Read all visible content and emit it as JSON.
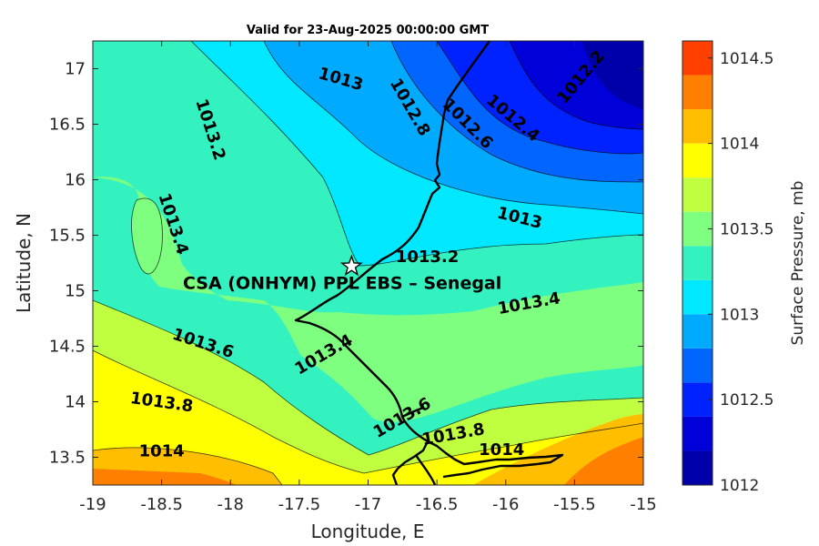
{
  "chart_data": {
    "type": "contour",
    "title": "Valid for 23-Aug-2025 00:00:00 GMT",
    "xlabel": "Longitude, E",
    "ylabel": "Latitude, N",
    "xlim": [
      -19,
      -15
    ],
    "ylim": [
      13.25,
      17.25
    ],
    "xticks": [
      -19,
      -18.5,
      -18,
      -17.5,
      -17,
      -16.5,
      -16,
      -15.5,
      -15
    ],
    "xtick_labels": [
      "-19",
      "-18.5",
      "-18",
      "-17.5",
      "-17",
      "-16.5",
      "-16",
      "-15.5",
      "-15"
    ],
    "yticks": [
      13.5,
      14,
      14.5,
      15,
      15.5,
      16,
      16.5,
      17
    ],
    "ytick_labels": [
      "13.5",
      "14",
      "14.5",
      "15",
      "15.5",
      "16",
      "16.5",
      "17"
    ],
    "colorbar": {
      "label": "Surface Pressure, mb",
      "range": [
        1012,
        1014.6
      ],
      "ticks": [
        1012,
        1012.5,
        1013,
        1013.5,
        1014,
        1014.5
      ],
      "tick_labels": [
        "1012",
        "1012.5",
        "1013",
        "1013.5",
        "1014",
        "1014.5"
      ],
      "levels": [
        1012,
        1012.2,
        1012.4,
        1012.6,
        1012.8,
        1013,
        1013.2,
        1013.4,
        1013.6,
        1013.8,
        1014,
        1014.2,
        1014.4,
        1014.6
      ],
      "colors": [
        "#0000aa",
        "#0000d8",
        "#0022ff",
        "#0066ff",
        "#00aaff",
        "#00e8ff",
        "#33f2c0",
        "#7fff7f",
        "#bfff3f",
        "#ffff00",
        "#ffbf00",
        "#ff8000",
        "#ff4000"
      ]
    },
    "grid": false,
    "contour_labels": [
      {
        "text": "1013",
        "x": -17.2,
        "y": 16.9
      },
      {
        "text": "1012.8",
        "x": -16.7,
        "y": 16.65
      },
      {
        "text": "1012.6",
        "x": -16.28,
        "y": 16.5
      },
      {
        "text": "1012.4",
        "x": -15.95,
        "y": 16.55
      },
      {
        "text": "1012.2",
        "x": -15.45,
        "y": 16.92
      },
      {
        "text": "1013.2",
        "x": -18.15,
        "y": 16.45
      },
      {
        "text": "1013.4",
        "x": -18.42,
        "y": 15.6
      },
      {
        "text": "1013",
        "x": -15.9,
        "y": 15.65
      },
      {
        "text": "1013.2",
        "x": -16.57,
        "y": 15.3
      },
      {
        "text": "1013.4",
        "x": -15.83,
        "y": 14.88
      },
      {
        "text": "1013.6",
        "x": -18.2,
        "y": 14.52
      },
      {
        "text": "1013.4",
        "x": -17.32,
        "y": 14.42
      },
      {
        "text": "1013.8",
        "x": -18.5,
        "y": 13.99
      },
      {
        "text": "1014",
        "x": -18.5,
        "y": 13.55
      },
      {
        "text": "1013.6",
        "x": -16.75,
        "y": 13.85
      },
      {
        "text": "1013.8",
        "x": -16.38,
        "y": 13.7
      },
      {
        "text": "1014",
        "x": -16.03,
        "y": 13.56
      }
    ],
    "site": {
      "label": "CSA (ONHYM) PPL EBS  – Senegal",
      "lon": -17.12,
      "lat": 15.22,
      "marker": "star"
    }
  }
}
